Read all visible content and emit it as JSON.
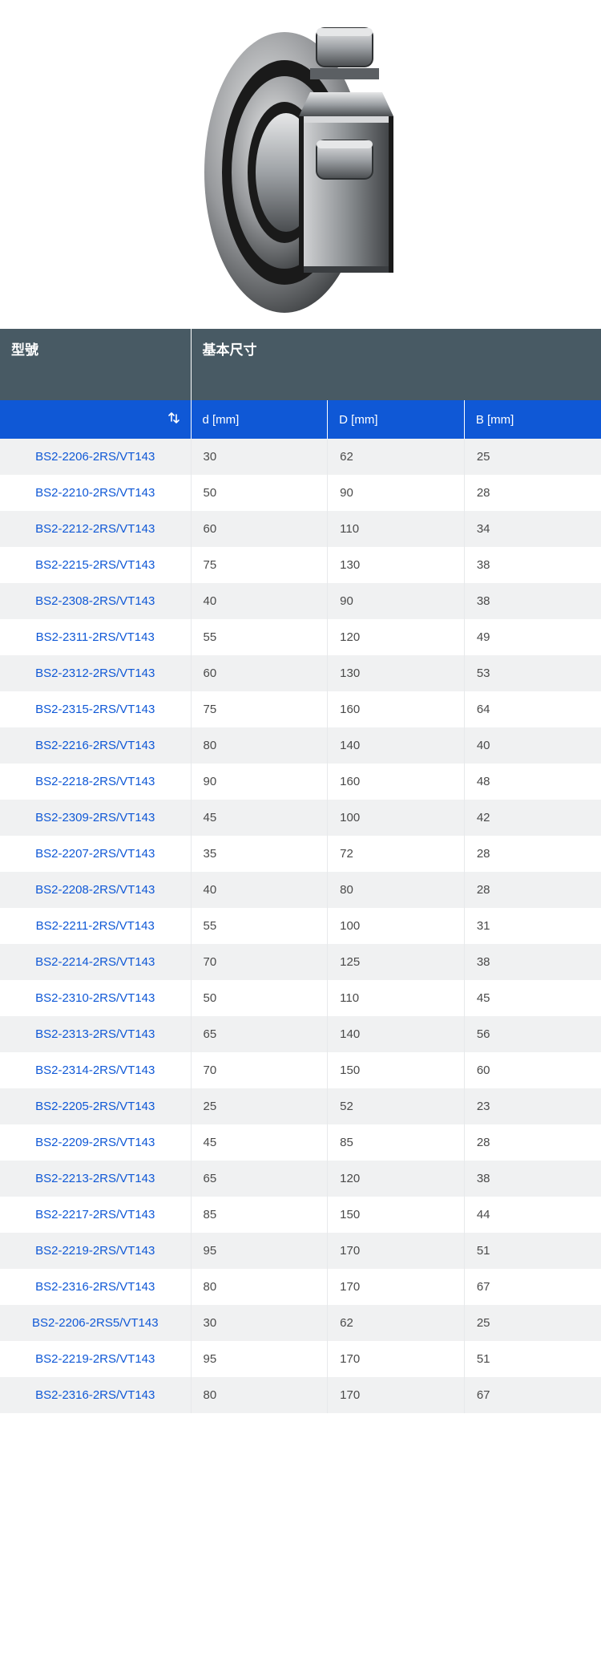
{
  "hero": {
    "alt": "sealed-spherical-roller-bearing-cutaway",
    "colors": {
      "steel_light": "#c8cacc",
      "steel_mid": "#9ea2a6",
      "steel_dark": "#5b5f63",
      "seal_rubber": "#1a1a1a",
      "highlight": "#e6e7e8",
      "shadow": "#2e3133"
    }
  },
  "table": {
    "header": {
      "designation_title": "型號",
      "dimensions_title": "基本尺寸",
      "sort_icon_name": "sort-icon"
    },
    "columns": {
      "d": "d [mm]",
      "D": "D [mm]",
      "B": "B [mm]"
    },
    "rows": [
      {
        "designation": "BS2-2206-2RS/VT143",
        "d": "30",
        "D": "62",
        "B": "25"
      },
      {
        "designation": "BS2-2210-2RS/VT143",
        "d": "50",
        "D": "90",
        "B": "28"
      },
      {
        "designation": "BS2-2212-2RS/VT143",
        "d": "60",
        "D": "110",
        "B": "34"
      },
      {
        "designation": "BS2-2215-2RS/VT143",
        "d": "75",
        "D": "130",
        "B": "38"
      },
      {
        "designation": "BS2-2308-2RS/VT143",
        "d": "40",
        "D": "90",
        "B": "38"
      },
      {
        "designation": "BS2-2311-2RS/VT143",
        "d": "55",
        "D": "120",
        "B": "49"
      },
      {
        "designation": "BS2-2312-2RS/VT143",
        "d": "60",
        "D": "130",
        "B": "53"
      },
      {
        "designation": "BS2-2315-2RS/VT143",
        "d": "75",
        "D": "160",
        "B": "64"
      },
      {
        "designation": "BS2-2216-2RS/VT143",
        "d": "80",
        "D": "140",
        "B": "40"
      },
      {
        "designation": "BS2-2218-2RS/VT143",
        "d": "90",
        "D": "160",
        "B": "48"
      },
      {
        "designation": "BS2-2309-2RS/VT143",
        "d": "45",
        "D": "100",
        "B": "42"
      },
      {
        "designation": "BS2-2207-2RS/VT143",
        "d": "35",
        "D": "72",
        "B": "28"
      },
      {
        "designation": "BS2-2208-2RS/VT143",
        "d": "40",
        "D": "80",
        "B": "28"
      },
      {
        "designation": "BS2-2211-2RS/VT143",
        "d": "55",
        "D": "100",
        "B": "31"
      },
      {
        "designation": "BS2-2214-2RS/VT143",
        "d": "70",
        "D": "125",
        "B": "38"
      },
      {
        "designation": "BS2-2310-2RS/VT143",
        "d": "50",
        "D": "110",
        "B": "45"
      },
      {
        "designation": "BS2-2313-2RS/VT143",
        "d": "65",
        "D": "140",
        "B": "56"
      },
      {
        "designation": "BS2-2314-2RS/VT143",
        "d": "70",
        "D": "150",
        "B": "60"
      },
      {
        "designation": "BS2-2205-2RS/VT143",
        "d": "25",
        "D": "52",
        "B": "23"
      },
      {
        "designation": "BS2-2209-2RS/VT143",
        "d": "45",
        "D": "85",
        "B": "28"
      },
      {
        "designation": "BS2-2213-2RS/VT143",
        "d": "65",
        "D": "120",
        "B": "38"
      },
      {
        "designation": "BS2-2217-2RS/VT143",
        "d": "85",
        "D": "150",
        "B": "44"
      },
      {
        "designation": "BS2-2219-2RS/VT143",
        "d": "95",
        "D": "170",
        "B": "51"
      },
      {
        "designation": "BS2-2316-2RS/VT143",
        "d": "80",
        "D": "170",
        "B": "67"
      },
      {
        "designation": "BS2-2206-2RS5/VT143",
        "d": "30",
        "D": "62",
        "B": "25"
      },
      {
        "designation": "BS2-2219-2RS/VT143",
        "d": "95",
        "D": "170",
        "B": "51"
      },
      {
        "designation": "BS2-2316-2RS/VT143",
        "d": "80",
        "D": "170",
        "B": "67"
      }
    ],
    "styling": {
      "header_bg": "#485a64",
      "header_fg": "#ffffff",
      "colhead_bg": "#0f58d6",
      "colhead_fg": "#ffffff",
      "row_odd_bg": "#f0f1f2",
      "row_even_bg": "#ffffff",
      "cell_border": "#e7e9eb",
      "link_color": "#0f58d6",
      "value_color": "#4a4a4a",
      "font_size_header": 17,
      "font_size_cell": 15
    }
  }
}
